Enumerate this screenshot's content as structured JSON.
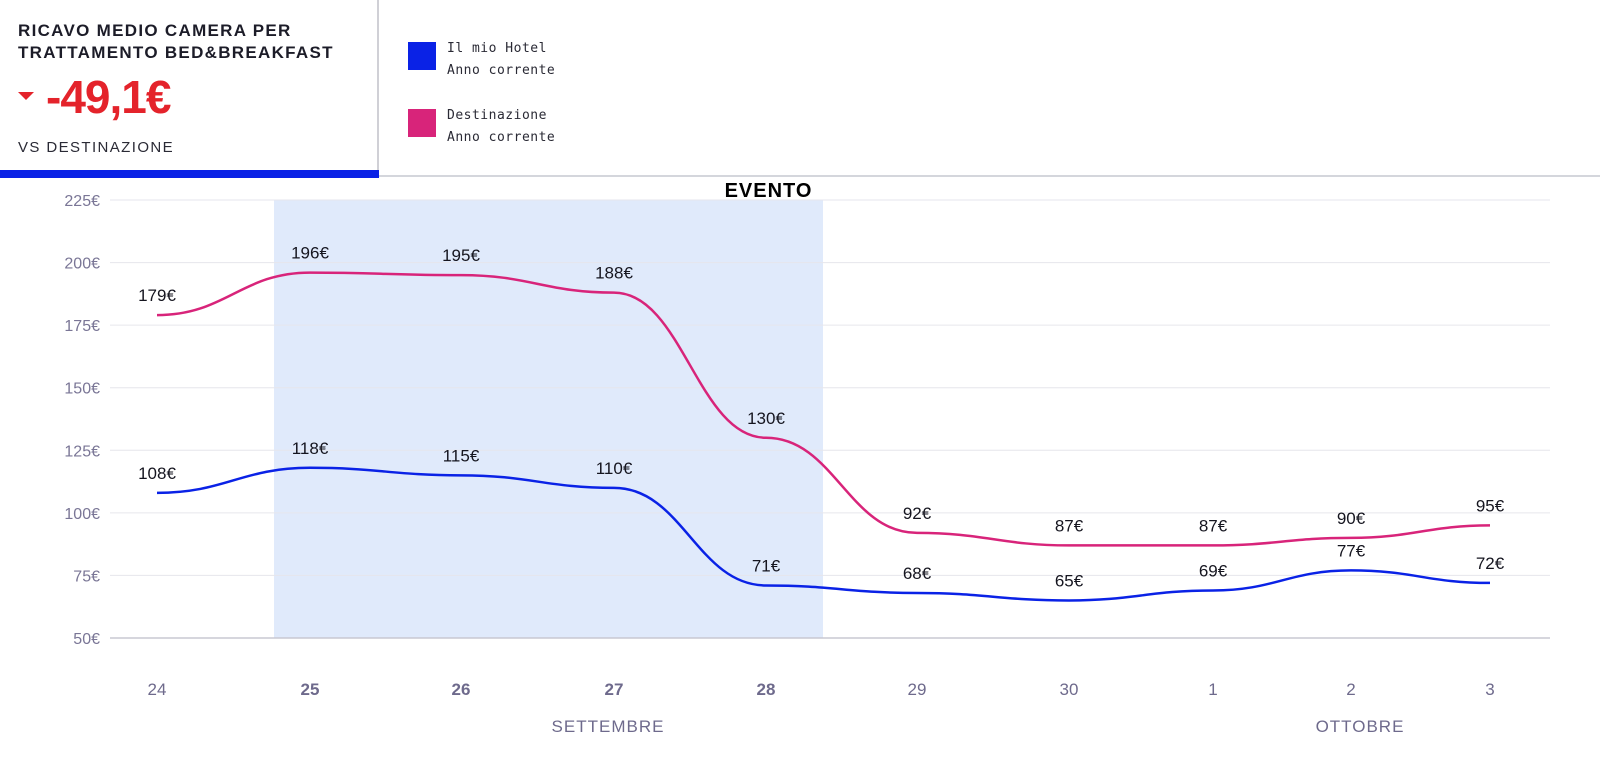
{
  "kpi": {
    "title_line1": "RICAVO MEDIO CAMERA PER",
    "title_line2": "TRATTAMENTO BED&BREAKFAST",
    "value": "-49,1€",
    "trend_icon": "triangle-down-icon",
    "subtitle": "VS DESTINAZIONE",
    "color": "#e4232b"
  },
  "legend": [
    {
      "line1": "Il mio Hotel",
      "line2": "Anno corrente",
      "color": "#0a22e6"
    },
    {
      "line1": "Destinazione",
      "line2": "Anno corrente",
      "color": "#d8247a"
    }
  ],
  "chart_data": {
    "type": "line",
    "title": "RICAVO MEDIO CAMERA PER TRATTAMENTO BED&BREAKFAST",
    "categories": [
      "24",
      "25",
      "26",
      "27",
      "28",
      "29",
      "30",
      "1",
      "2",
      "3"
    ],
    "bold_categories": [
      "25",
      "26",
      "27",
      "28"
    ],
    "months": [
      {
        "label": "SETTEMBRE"
      },
      {
        "label": "OTTOBRE"
      }
    ],
    "yticks": [
      "50€",
      "75€",
      "100€",
      "125€",
      "150€",
      "175€",
      "200€",
      "225€"
    ],
    "ylim": [
      50,
      225
    ],
    "grid": true,
    "series": [
      {
        "name": "Il mio Hotel Anno corrente",
        "color": "#0a22e6",
        "values": [
          108,
          118,
          115,
          110,
          71,
          68,
          65,
          69,
          77,
          72
        ],
        "labels": [
          "108€",
          "118€",
          "115€",
          "110€",
          "71€",
          "68€",
          "65€",
          "69€",
          "77€",
          "72€"
        ]
      },
      {
        "name": "Destinazione Anno corrente",
        "color": "#d8247a",
        "values": [
          179,
          196,
          195,
          188,
          130,
          92,
          87,
          87,
          90,
          95
        ],
        "labels": [
          "179€",
          "196€",
          "195€",
          "188€",
          "130€",
          "92€",
          "87€",
          "87€",
          "90€",
          "95€"
        ]
      }
    ],
    "event": {
      "label": "EVENTO",
      "from": "25",
      "to": "28",
      "color": "#e0eafb"
    }
  }
}
